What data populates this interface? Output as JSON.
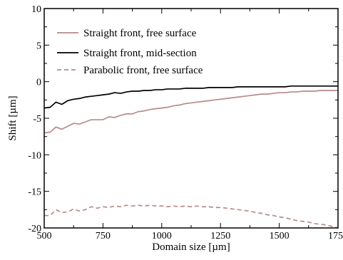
{
  "chart_data": {
    "type": "line",
    "title": "",
    "xlabel": "Domain size [µm]",
    "ylabel": "Shift [µm]",
    "xlim": [
      500,
      1750
    ],
    "ylim": [
      -20,
      10
    ],
    "xticks": [
      500,
      750,
      1000,
      1250,
      1500,
      1750
    ],
    "yticks": [
      10,
      5,
      0,
      -5,
      -10,
      -15,
      -20
    ],
    "xtick_labels": [
      "500",
      "750",
      "1000",
      "1250",
      "1500",
      "1750"
    ],
    "ytick_labels": [
      "10",
      "5",
      "0",
      "-5",
      "-10",
      "-15",
      "-20"
    ],
    "grid": false,
    "legend_position": "top-left",
    "series": [
      {
        "name": "Straight front, free surface",
        "color": "#b88a8a",
        "dash": "solid",
        "x": [
          500,
          525,
          550,
          575,
          600,
          625,
          650,
          675,
          700,
          725,
          750,
          775,
          800,
          825,
          850,
          875,
          900,
          925,
          950,
          975,
          1000,
          1025,
          1050,
          1075,
          1100,
          1125,
          1150,
          1175,
          1200,
          1225,
          1250,
          1275,
          1300,
          1325,
          1350,
          1375,
          1400,
          1425,
          1450,
          1475,
          1500,
          1525,
          1550,
          1575,
          1600,
          1625,
          1650,
          1675,
          1700,
          1725,
          1750
        ],
        "y": [
          -7.0,
          -6.9,
          -6.2,
          -6.5,
          -6.1,
          -5.7,
          -5.8,
          -5.5,
          -5.2,
          -5.2,
          -5.2,
          -4.8,
          -4.9,
          -4.6,
          -4.4,
          -4.4,
          -4.1,
          -4.0,
          -3.8,
          -3.7,
          -3.6,
          -3.5,
          -3.3,
          -3.2,
          -3.0,
          -2.9,
          -2.8,
          -2.7,
          -2.6,
          -2.5,
          -2.4,
          -2.3,
          -2.2,
          -2.1,
          -2.0,
          -1.9,
          -1.8,
          -1.7,
          -1.7,
          -1.6,
          -1.5,
          -1.5,
          -1.4,
          -1.4,
          -1.3,
          -1.3,
          -1.3,
          -1.2,
          -1.2,
          -1.2,
          -1.2
        ]
      },
      {
        "name": "Straight front, mid-section",
        "color": "#000000",
        "dash": "solid",
        "x": [
          500,
          525,
          550,
          575,
          600,
          625,
          650,
          675,
          700,
          725,
          750,
          775,
          800,
          825,
          850,
          875,
          900,
          925,
          950,
          975,
          1000,
          1025,
          1050,
          1075,
          1100,
          1125,
          1150,
          1175,
          1200,
          1225,
          1250,
          1275,
          1300,
          1325,
          1350,
          1375,
          1400,
          1425,
          1450,
          1475,
          1500,
          1525,
          1550,
          1575,
          1600,
          1625,
          1650,
          1675,
          1700,
          1725,
          1750
        ],
        "y": [
          -3.6,
          -3.5,
          -2.8,
          -3.1,
          -2.6,
          -2.4,
          -2.3,
          -2.1,
          -2.0,
          -1.9,
          -1.8,
          -1.7,
          -1.5,
          -1.6,
          -1.4,
          -1.3,
          -1.3,
          -1.2,
          -1.2,
          -1.1,
          -1.1,
          -1.0,
          -1.0,
          -1.0,
          -0.9,
          -0.9,
          -0.9,
          -0.9,
          -0.8,
          -0.8,
          -0.8,
          -0.8,
          -0.8,
          -0.7,
          -0.7,
          -0.7,
          -0.7,
          -0.7,
          -0.7,
          -0.7,
          -0.7,
          -0.7,
          -0.6,
          -0.6,
          -0.6,
          -0.6,
          -0.6,
          -0.6,
          -0.6,
          -0.6,
          -0.6
        ]
      },
      {
        "name": "Parabolic front, free surface",
        "color": "#b88a8a",
        "dash": "dashed",
        "x": [
          500,
          525,
          550,
          575,
          600,
          625,
          650,
          675,
          700,
          725,
          750,
          775,
          800,
          825,
          850,
          875,
          900,
          925,
          950,
          975,
          1000,
          1025,
          1050,
          1075,
          1100,
          1125,
          1150,
          1175,
          1200,
          1225,
          1250,
          1275,
          1300,
          1325,
          1350,
          1375,
          1400,
          1425,
          1450,
          1475,
          1500,
          1525,
          1550,
          1575,
          1600,
          1625,
          1650,
          1675,
          1700,
          1725,
          1750
        ],
        "y": [
          -18.3,
          -18.3,
          -17.5,
          -17.9,
          -17.8,
          -17.4,
          -17.7,
          -17.5,
          -17.1,
          -17.3,
          -17.1,
          -17.2,
          -17.0,
          -17.1,
          -16.9,
          -17.0,
          -16.9,
          -17.0,
          -16.9,
          -17.0,
          -17.0,
          -17.1,
          -17.0,
          -17.1,
          -17.0,
          -17.1,
          -17.0,
          -17.1,
          -17.1,
          -17.2,
          -17.2,
          -17.3,
          -17.4,
          -17.5,
          -17.6,
          -17.7,
          -17.9,
          -18.0,
          -18.2,
          -18.3,
          -18.5,
          -18.6,
          -18.8,
          -19.0,
          -19.1,
          -19.2,
          -19.4,
          -19.5,
          -19.6,
          -19.8,
          -20.0
        ]
      }
    ]
  }
}
